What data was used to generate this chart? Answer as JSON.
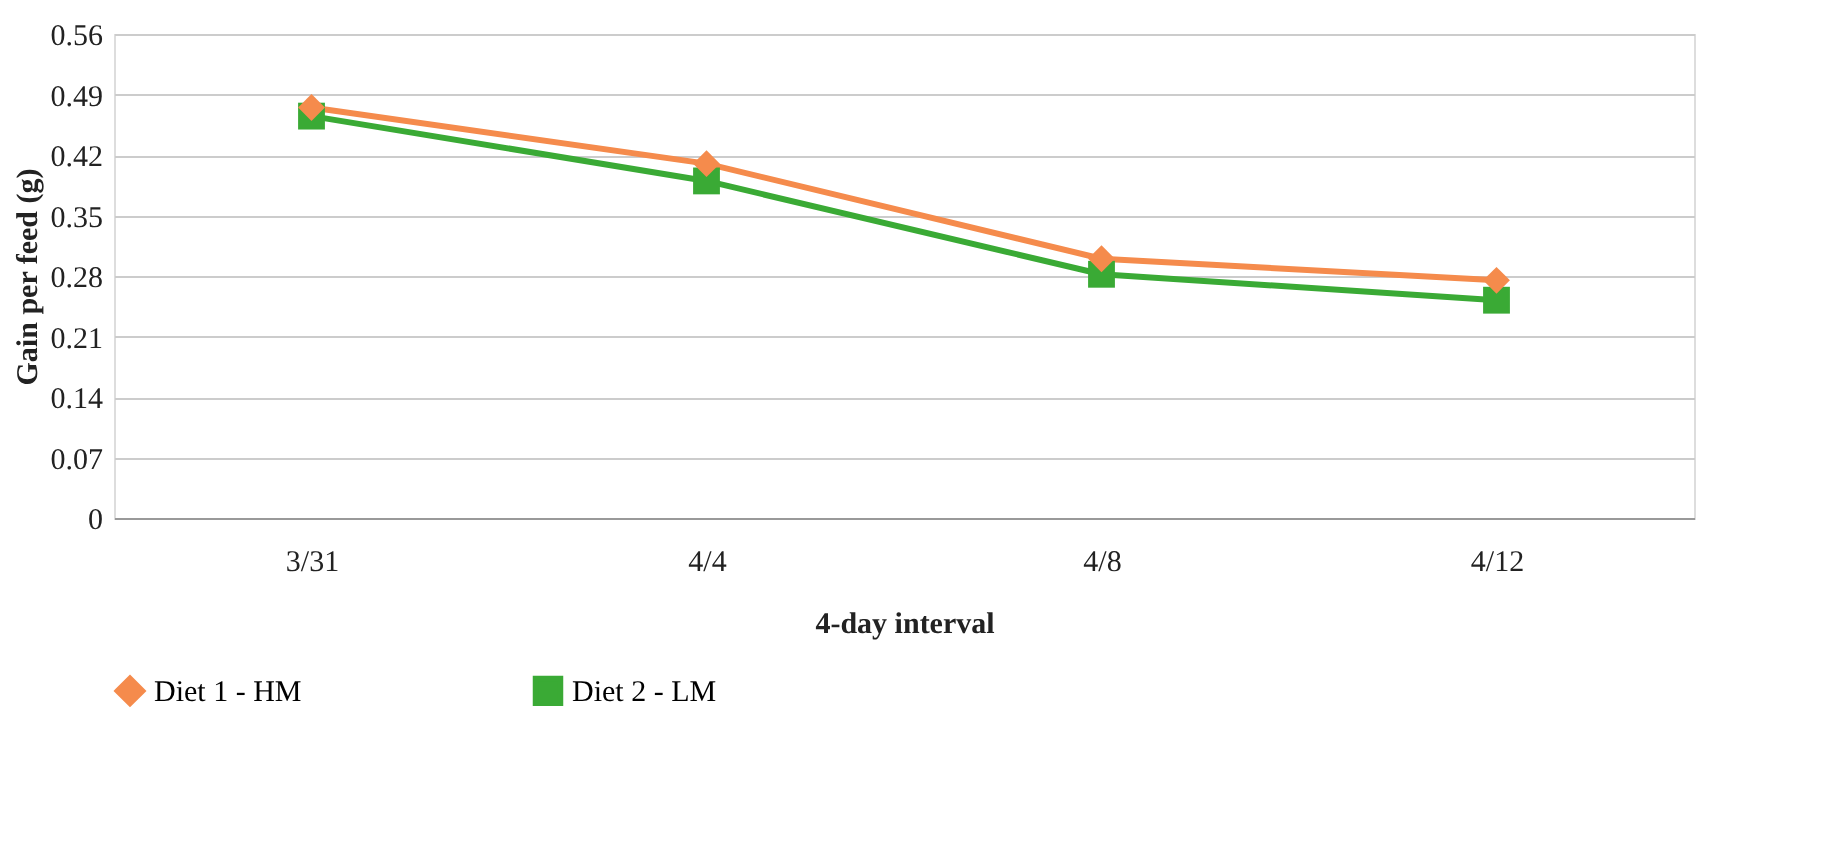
{
  "chart_data": {
    "type": "line",
    "xlabel": "4-day interval",
    "ylabel": "Gain per feed (g)",
    "categories": [
      "3/31",
      "4/4",
      "4/8",
      "4/12"
    ],
    "series": [
      {
        "name": "Diet 1 - HM",
        "color": "#f58b4c",
        "marker": "diamond",
        "values": [
          0.475,
          0.41,
          0.3,
          0.275
        ]
      },
      {
        "name": "Diet 2 - LM",
        "color": "#3aaa35",
        "marker": "square",
        "values": [
          0.465,
          0.39,
          0.282,
          0.252
        ]
      }
    ],
    "ylim": [
      0,
      0.56
    ],
    "yticks": [
      0,
      0.07,
      0.14,
      0.21,
      0.28,
      0.35,
      0.42,
      0.49,
      0.56
    ],
    "grid": "y",
    "legend": "bottom",
    "line_style": "solid"
  }
}
